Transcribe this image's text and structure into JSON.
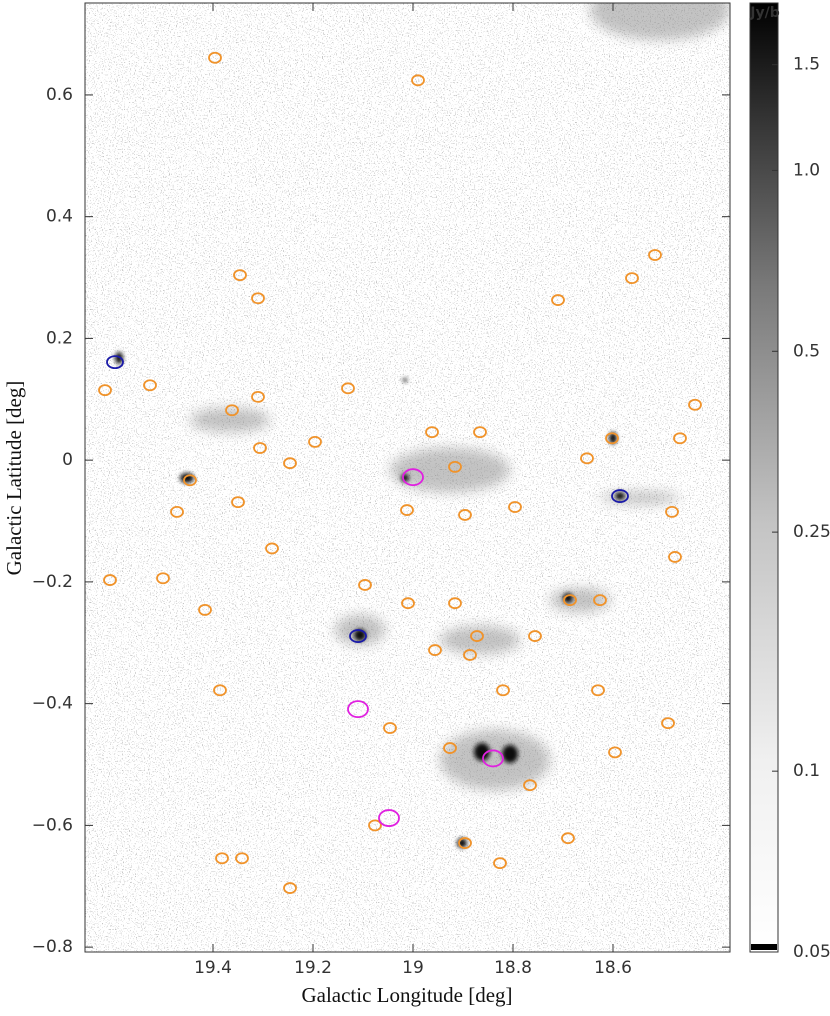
{
  "chart_data": {
    "type": "scatter",
    "xlabel": "Galactic Longitude [deg]",
    "ylabel": "Galactic Latitude [deg]",
    "xlim": [
      19.656,
      18.366
    ],
    "ylim": [
      -0.808,
      0.751
    ],
    "xticks": [
      19.4,
      19.2,
      19,
      18.8,
      18.6
    ],
    "yticks": [
      0.6,
      0.4,
      0.2,
      0,
      {
        "value": -0.2,
        "label": "−0.2"
      },
      {
        "value": -0.4,
        "label": "−0.4"
      },
      {
        "value": -0.6,
        "label": "−0.6"
      },
      {
        "value": -0.8,
        "label": "−0.8"
      }
    ],
    "series": [
      {
        "color": "#f0932b",
        "x": [
          19.396,
          18.99,
          19.346,
          19.31,
          18.562,
          18.71,
          19.616,
          19.526,
          19.362,
          19.31,
          19.306,
          19.196,
          19.13,
          18.962,
          18.866,
          18.916,
          18.602,
          18.652,
          18.466,
          19.446,
          19.472,
          19.35,
          19.246,
          19.012,
          18.896,
          18.796,
          18.482,
          18.476,
          19.606,
          19.5,
          19.416,
          19.282,
          19.096,
          19.01,
          18.916,
          18.872,
          18.756,
          18.686,
          18.626,
          18.956,
          18.886,
          18.82,
          18.63,
          18.49,
          19.386,
          19.046,
          18.596,
          18.926,
          18.766,
          19.076,
          18.896,
          18.826,
          19.382,
          19.342,
          19.246,
          18.69,
          18.436,
          18.516
        ],
        "values": [
          0.661,
          0.624,
          0.304,
          0.266,
          0.299,
          0.263,
          0.115,
          0.123,
          0.082,
          0.104,
          0.02,
          0.03,
          0.118,
          0.046,
          0.046,
          -0.011,
          0.036,
          0.003,
          0.036,
          -0.033,
          -0.085,
          -0.069,
          -0.005,
          -0.082,
          -0.09,
          -0.077,
          -0.085,
          -0.159,
          -0.197,
          -0.194,
          -0.246,
          -0.145,
          -0.205,
          -0.235,
          -0.235,
          -0.289,
          -0.289,
          -0.23,
          -0.23,
          -0.312,
          -0.32,
          -0.378,
          -0.378,
          -0.432,
          -0.378,
          -0.44,
          -0.48,
          -0.473,
          -0.534,
          -0.6,
          -0.629,
          -0.662,
          -0.654,
          -0.654,
          -0.703,
          -0.621,
          0.091,
          0.337
        ]
      },
      {
        "color": "#1a1aa8",
        "x": [
          19.596,
          19.11,
          18.586
        ],
        "values": [
          0.161,
          -0.289,
          -0.059
        ]
      },
      {
        "color": "#e020e0",
        "x": [
          19.0,
          18.84,
          19.11,
          19.048
        ],
        "values": [
          -0.028,
          -0.49,
          -0.409,
          -0.588
        ]
      }
    ],
    "colorbar": {
      "label": "Jy/b",
      "scale": "log",
      "lim": [
        0.05,
        1.9
      ],
      "ticks": [
        0.05,
        0.1,
        0.25,
        0.5,
        {
          "value": 1,
          "label": "1.0"
        },
        1.5
      ]
    }
  }
}
